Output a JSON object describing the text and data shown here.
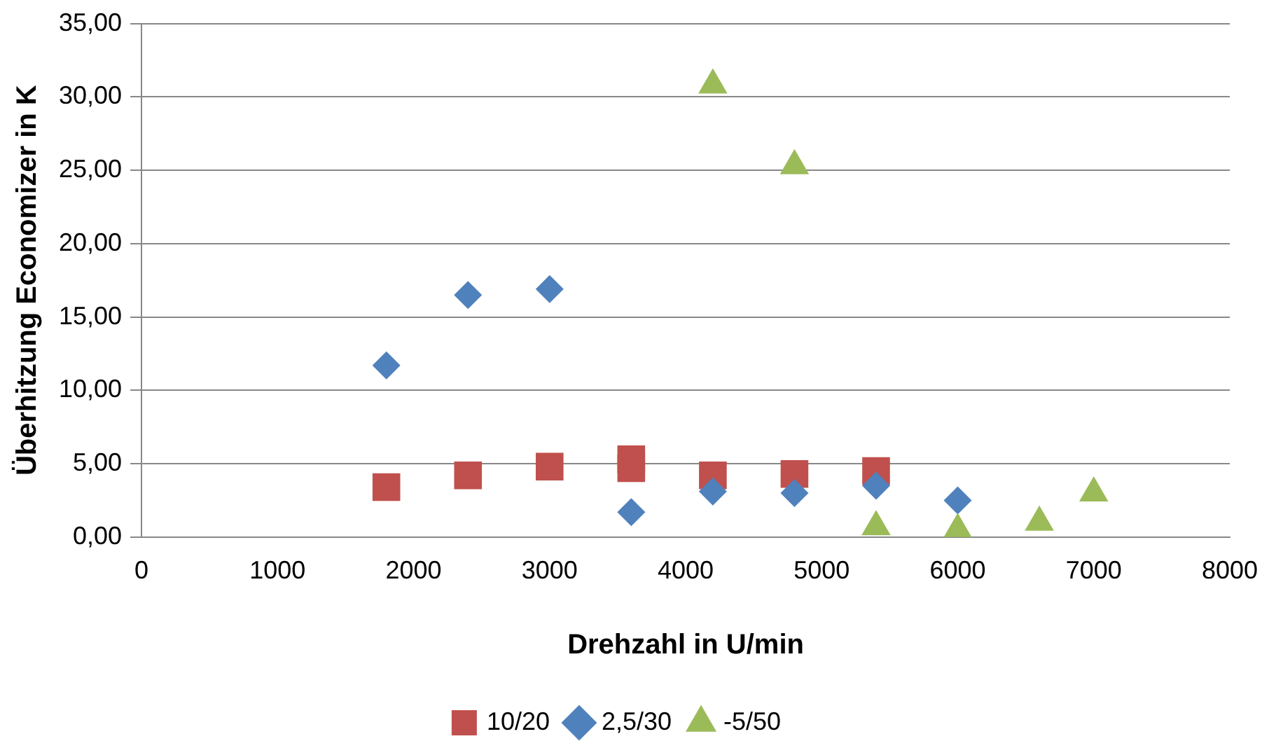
{
  "chart_data": {
    "type": "scatter",
    "xlabel": "Drehzahl in U/min",
    "ylabel": "Überhitzung Economizer in K",
    "xlim": [
      0,
      8000
    ],
    "xticks": [
      0,
      1000,
      2000,
      3000,
      4000,
      5000,
      6000,
      7000,
      8000
    ],
    "ylim": [
      0,
      35
    ],
    "yticks": [
      {
        "value": 0,
        "label": "0,00"
      },
      {
        "value": 5,
        "label": "5,00"
      },
      {
        "value": 10,
        "label": "10,00"
      },
      {
        "value": 15,
        "label": "15,00"
      },
      {
        "value": 20,
        "label": "20,00"
      },
      {
        "value": 25,
        "label": "25,00"
      },
      {
        "value": 30,
        "label": "30,00"
      },
      {
        "value": 35,
        "label": "35,00"
      }
    ],
    "grid": "y",
    "legend": "bottom",
    "series": [
      {
        "name": "10/20",
        "color": "#c0504d",
        "marker": "square",
        "x": [
          1800,
          2400,
          3000,
          3600,
          3600,
          4200,
          4800,
          5400
        ],
        "values": [
          3.4,
          4.2,
          4.8,
          5.3,
          4.7,
          4.2,
          4.3,
          4.5
        ]
      },
      {
        "name": "2,5/30",
        "color": "#4f81bd",
        "marker": "diamond",
        "x": [
          1800,
          2400,
          3000,
          3600,
          4200,
          4800,
          5400,
          6000
        ],
        "values": [
          11.7,
          16.5,
          16.9,
          1.7,
          3.1,
          3.0,
          3.5,
          2.5
        ]
      },
      {
        "name": "-5/50",
        "color": "#9bbb59",
        "marker": "triangle",
        "x": [
          4200,
          4800,
          5400,
          6000,
          6600,
          7000
        ],
        "values": [
          30.8,
          25.3,
          0.7,
          0.5,
          1.0,
          3.0
        ]
      }
    ]
  }
}
